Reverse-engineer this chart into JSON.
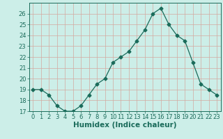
{
  "x": [
    0,
    1,
    2,
    3,
    4,
    5,
    6,
    7,
    8,
    9,
    10,
    11,
    12,
    13,
    14,
    15,
    16,
    17,
    18,
    19,
    20,
    21,
    22,
    23
  ],
  "y": [
    19,
    19,
    18.5,
    17.5,
    17,
    17,
    17.5,
    18.5,
    19.5,
    20,
    21.5,
    22,
    22.5,
    23.5,
    24.5,
    26,
    26.5,
    25,
    24,
    23.5,
    21.5,
    19.5,
    19,
    18.5
  ],
  "line_color": "#1a6b5a",
  "marker": "D",
  "marker_size": 2.5,
  "bg_color": "#cceee8",
  "grid_color": "#d4a8a0",
  "xlabel": "Humidex (Indice chaleur)",
  "ylim": [
    17,
    27
  ],
  "xlim": [
    -0.5,
    23.5
  ],
  "yticks": [
    17,
    18,
    19,
    20,
    21,
    22,
    23,
    24,
    25,
    26
  ],
  "xticks": [
    0,
    1,
    2,
    3,
    4,
    5,
    6,
    7,
    8,
    9,
    10,
    11,
    12,
    13,
    14,
    15,
    16,
    17,
    18,
    19,
    20,
    21,
    22,
    23
  ],
  "tick_label_fontsize": 6,
  "xlabel_fontsize": 7.5
}
